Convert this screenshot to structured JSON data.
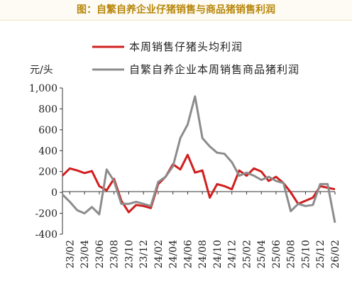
{
  "title": "图：自繁自养企业仔猪销售与商品猪销售利润",
  "colors": {
    "series1": "#d11e1e",
    "series2": "#8c8c8c",
    "title": "#b8860b"
  },
  "chart_data": {
    "type": "line",
    "title": "图：自繁自养企业仔猪销售与商品猪销售利润",
    "ylabel": "元/头",
    "xlabel": "",
    "ylim": [
      -400,
      1000
    ],
    "yticks": [
      1000,
      800,
      600,
      400,
      200,
      0,
      -200,
      -400
    ],
    "ytick_labels": [
      "1,000",
      "800",
      "600",
      "400",
      "200",
      "0",
      "-200",
      "-400"
    ],
    "xlim": [
      "23/01",
      "26/02"
    ],
    "xtick_labels": [
      "23/02",
      "23/04",
      "23/06",
      "23/08",
      "23/10",
      "23/12",
      "24/02",
      "24/04",
      "24/06",
      "24/08",
      "24/10",
      "24/12",
      "25/02",
      "25/04",
      "25/06",
      "25/08",
      "25/10",
      "25/12",
      "26/02"
    ],
    "grid": false,
    "legend_position": "top",
    "series": [
      {
        "name": "本周销售仔猪头均利润",
        "color": "#d11e1e",
        "points": [
          [
            "23/01",
            160
          ],
          [
            "23/02",
            230
          ],
          [
            "23/03",
            210
          ],
          [
            "23/04",
            185
          ],
          [
            "23/05",
            205
          ],
          [
            "23/06",
            60
          ],
          [
            "23/07",
            20
          ],
          [
            "23/08",
            130
          ],
          [
            "23/09",
            -80
          ],
          [
            "23/10",
            -190
          ],
          [
            "23/11",
            -120
          ],
          [
            "23/12",
            -130
          ],
          [
            "24/01",
            -150
          ],
          [
            "24/02",
            80
          ],
          [
            "24/03",
            150
          ],
          [
            "24/04",
            270
          ],
          [
            "24/05",
            220
          ],
          [
            "24/06",
            360
          ],
          [
            "24/07",
            190
          ],
          [
            "24/08",
            210
          ],
          [
            "24/09",
            -50
          ],
          [
            "24/10",
            80
          ],
          [
            "24/11",
            60
          ],
          [
            "24/12",
            30
          ],
          [
            "25/01",
            210
          ],
          [
            "25/02",
            160
          ],
          [
            "25/03",
            230
          ],
          [
            "25/04",
            200
          ],
          [
            "25/05",
            110
          ],
          [
            "25/06",
            150
          ],
          [
            "25/07",
            90
          ],
          [
            "25/08",
            0
          ],
          [
            "25/09",
            -110
          ],
          [
            "25/10",
            -80
          ],
          [
            "25/11",
            -50
          ],
          [
            "25/12",
            60
          ],
          [
            "26/01",
            45
          ],
          [
            "26/02",
            30
          ]
        ]
      },
      {
        "name": "自繁自养企业本周销售商品猪利润",
        "color": "#8c8c8c",
        "points": [
          [
            "23/01",
            -20
          ],
          [
            "23/02",
            -90
          ],
          [
            "23/03",
            -170
          ],
          [
            "23/04",
            -200
          ],
          [
            "23/05",
            -140
          ],
          [
            "23/06",
            -210
          ],
          [
            "23/07",
            220
          ],
          [
            "23/08",
            110
          ],
          [
            "23/09",
            -110
          ],
          [
            "23/10",
            -110
          ],
          [
            "23/11",
            -90
          ],
          [
            "23/12",
            -110
          ],
          [
            "24/01",
            -130
          ],
          [
            "24/02",
            100
          ],
          [
            "24/03",
            150
          ],
          [
            "24/04",
            250
          ],
          [
            "24/05",
            520
          ],
          [
            "24/06",
            650
          ],
          [
            "24/07",
            920
          ],
          [
            "24/08",
            520
          ],
          [
            "24/09",
            440
          ],
          [
            "24/10",
            380
          ],
          [
            "24/11",
            370
          ],
          [
            "24/12",
            290
          ],
          [
            "25/01",
            160
          ],
          [
            "25/02",
            190
          ],
          [
            "25/03",
            160
          ],
          [
            "25/04",
            120
          ],
          [
            "25/05",
            150
          ],
          [
            "25/06",
            110
          ],
          [
            "25/07",
            90
          ],
          [
            "25/08",
            -180
          ],
          [
            "25/09",
            -110
          ],
          [
            "25/10",
            -130
          ],
          [
            "25/11",
            -120
          ],
          [
            "25/12",
            80
          ],
          [
            "26/01",
            80
          ],
          [
            "26/02",
            -290
          ]
        ]
      }
    ]
  }
}
